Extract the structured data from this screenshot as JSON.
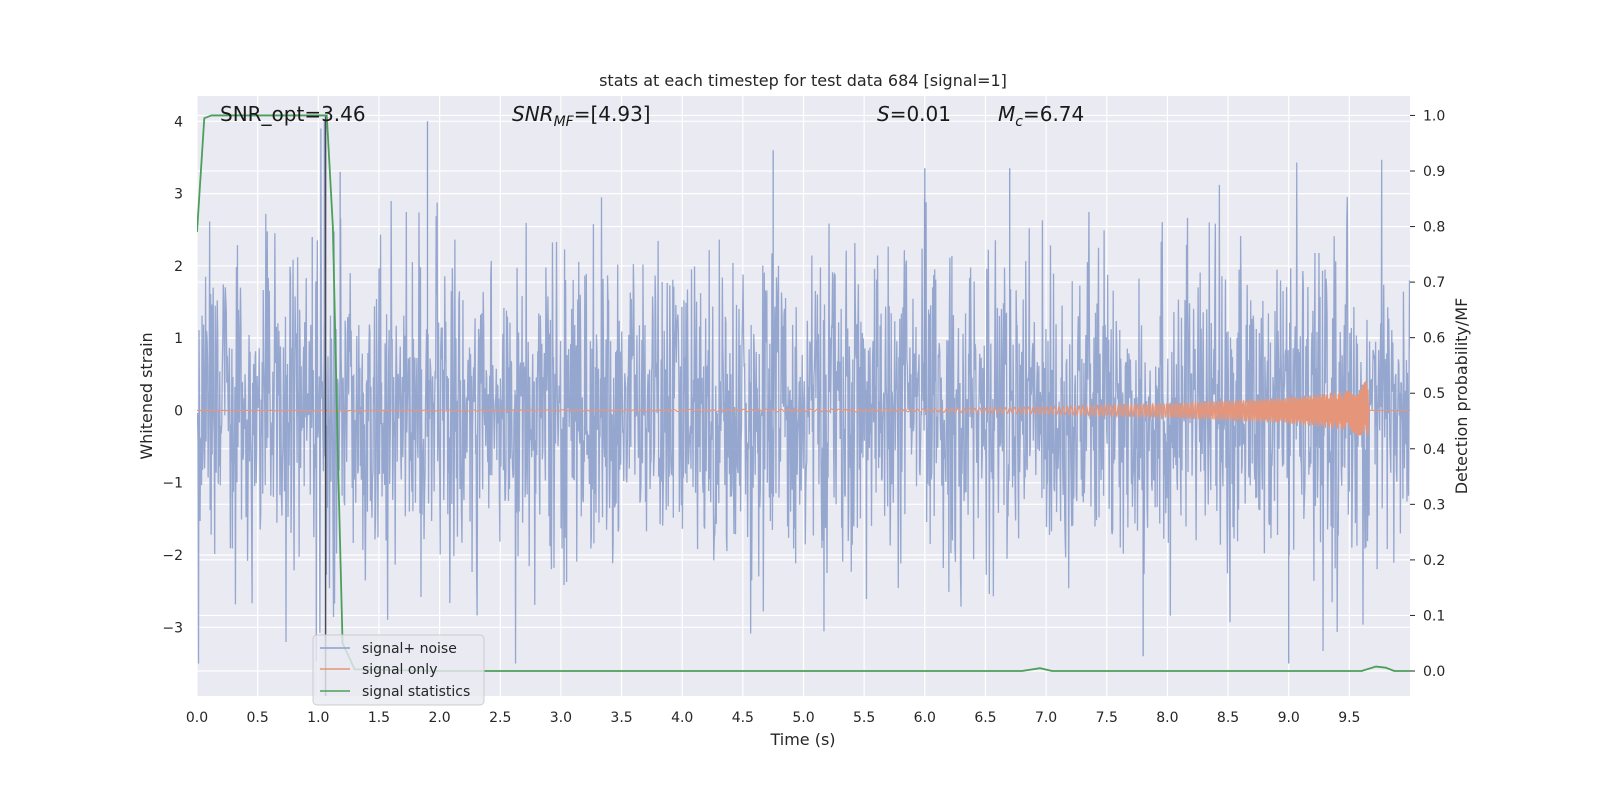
{
  "chart_data": {
    "type": "line",
    "title": "stats at each timestep for test data 684 [signal=1]",
    "xlabel": "Time (s)",
    "ylabel_left": "Whitened strain",
    "ylabel_right": "Detection probability/MF",
    "xlim": [
      0,
      10
    ],
    "ylim_left": [
      -3.95,
      4.35
    ],
    "ylim_right": [
      -0.045,
      1.035
    ],
    "x_ticks": [
      "0.0",
      "0.5",
      "1.0",
      "1.5",
      "2.0",
      "2.5",
      "3.0",
      "3.5",
      "4.0",
      "4.5",
      "5.0",
      "5.5",
      "6.0",
      "6.5",
      "7.0",
      "7.5",
      "8.0",
      "8.5",
      "9.0",
      "9.5"
    ],
    "y_left_ticks": [
      "4",
      "3",
      "2",
      "1",
      "0",
      "−1",
      "−2",
      "−3"
    ],
    "y_right_ticks": [
      "1.0",
      "0.9",
      "0.8",
      "0.7",
      "0.6",
      "0.5",
      "0.4",
      "0.3",
      "0.2",
      "0.1",
      "0.0"
    ],
    "grid": true,
    "legend_position": "lower-left",
    "annotations": {
      "snr_opt": "SNR_opt=3.46",
      "snr_mf_sym": "SNR",
      "snr_mf_sub": "MF",
      "snr_mf_val": "=[4.93]",
      "s_sym": "S",
      "s_val": "=0.01",
      "mc_sym": "M",
      "mc_sub": "c",
      "mc_val": "=6.74"
    },
    "vertical_line_x": 1.06,
    "series": [
      {
        "name": "signal+ noise",
        "color": "#8da0cb",
        "axis": "left",
        "description": "whitened noise with amplitude roughly ±2.5, peaks to 4.0 and -3.6"
      },
      {
        "name": "signal only",
        "color": "#e5967a",
        "axis": "left",
        "description": "chirp near zero growing to ±0.4 at t≈9.65 s",
        "points": [
          [
            0,
            0
          ],
          [
            6,
            0.02
          ],
          [
            7,
            0.05
          ],
          [
            8,
            0.1
          ],
          [
            9,
            0.18
          ],
          [
            9.5,
            0.28
          ],
          [
            9.65,
            0.42
          ],
          [
            9.68,
            0
          ]
        ]
      },
      {
        "name": "signal statistics",
        "color": "#4c9f5a",
        "axis": "right",
        "points": [
          [
            0,
            0.79
          ],
          [
            0.06,
            0.995
          ],
          [
            0.12,
            1.0
          ],
          [
            0.5,
            1.0
          ],
          [
            1.0,
            1.0
          ],
          [
            1.07,
            1.0
          ],
          [
            1.12,
            0.8
          ],
          [
            1.16,
            0.4
          ],
          [
            1.2,
            0.05
          ],
          [
            1.3,
            0.003
          ],
          [
            2,
            0.0
          ],
          [
            6.8,
            0.0
          ],
          [
            6.95,
            0.005
          ],
          [
            7.05,
            0.0
          ],
          [
            9.6,
            0.0
          ],
          [
            9.72,
            0.008
          ],
          [
            9.8,
            0.006
          ],
          [
            9.87,
            0.0
          ],
          [
            10,
            0.0
          ]
        ]
      }
    ]
  }
}
